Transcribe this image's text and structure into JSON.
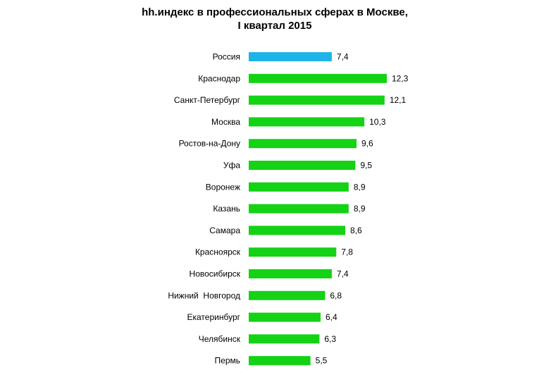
{
  "chart_data": {
    "type": "bar",
    "orientation": "horizontal",
    "title": "hh.индекс в профессиональных сферах в Москве,",
    "subtitle": "I квартал 2015",
    "categories": [
      "Россия",
      "Краснодар",
      "Санкт-Петербург",
      "Москва",
      "Ростов-на-Дону",
      "Уфа",
      "Воронеж",
      "Казань",
      "Самара",
      "Красноярск",
      "Новосибирск",
      "Нижний  Новгород",
      "Екатеринбург",
      "Челябинск",
      "Пермь"
    ],
    "values": [
      7.4,
      12.3,
      12.1,
      10.3,
      9.6,
      9.5,
      8.9,
      8.9,
      8.6,
      7.8,
      7.4,
      6.8,
      6.4,
      6.3,
      5.5
    ],
    "data_labels": [
      "7,4",
      "12,3",
      "12,1",
      "10,3",
      "9,6",
      "9,5",
      "8,9",
      "8,9",
      "8,6",
      "7,8",
      "7,4",
      "6,8",
      "6,4",
      "6,3",
      "5,5"
    ],
    "highlight_index": 0,
    "colors": {
      "highlight": "#1EB4E8",
      "default": "#14D214"
    },
    "xlim": [
      0,
      12.3
    ],
    "grid": false,
    "legend": "none"
  }
}
